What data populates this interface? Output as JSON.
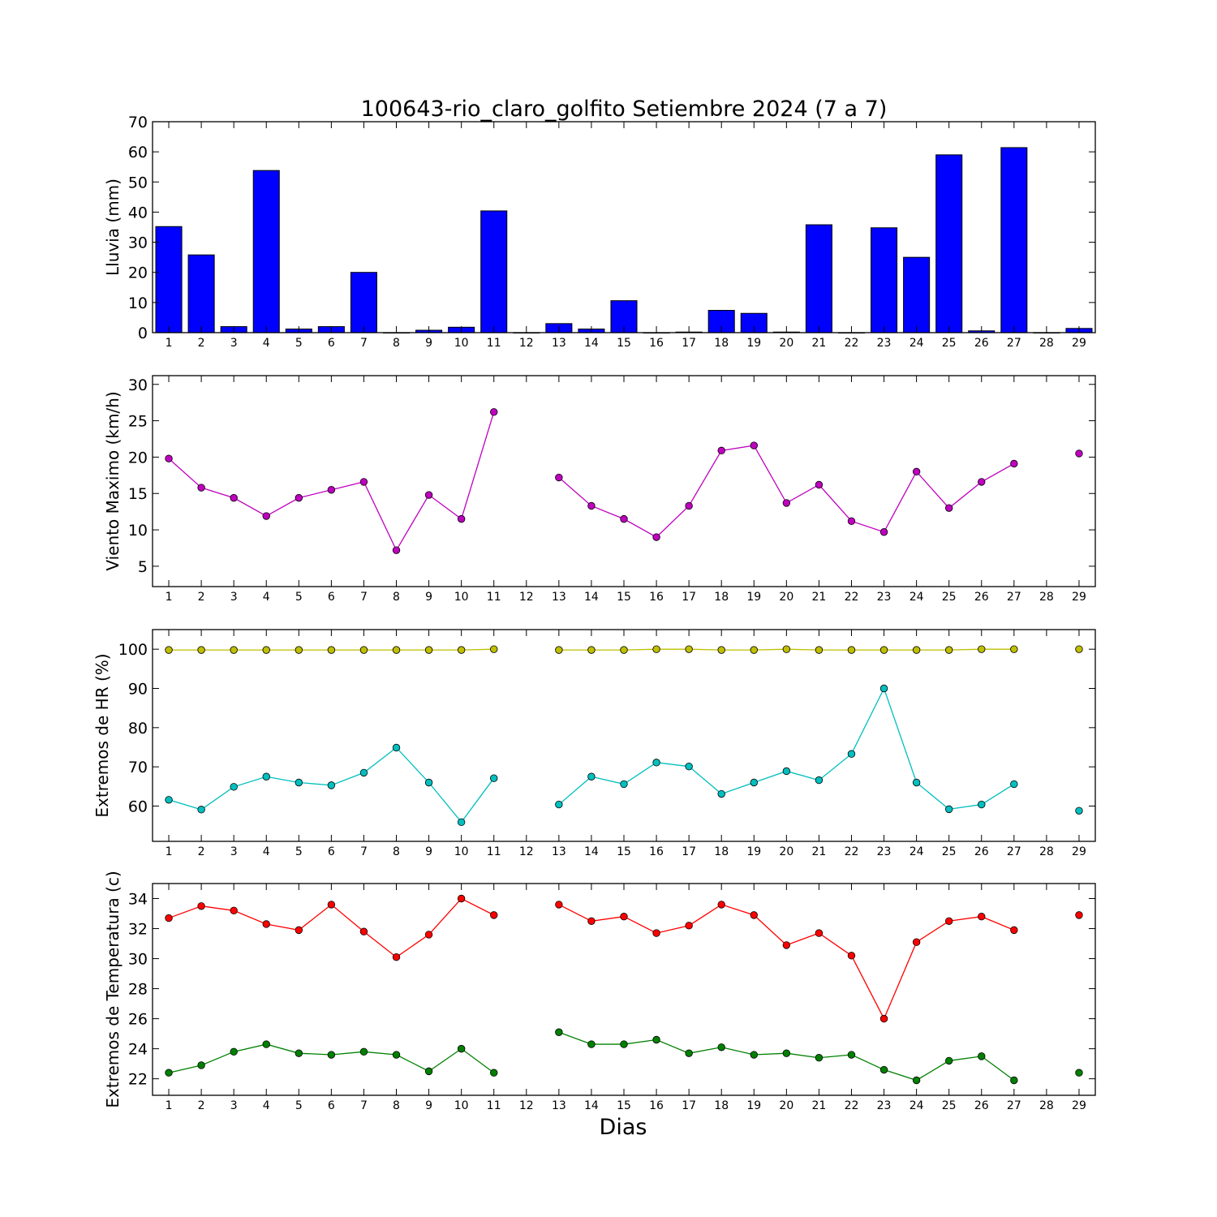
{
  "chart_data": [
    {
      "type": "bar",
      "title": "100643-rio_claro_golfito Setiembre 2024  (7 a 7)",
      "ylabel": "Lluvia (mm)",
      "xlabel": "",
      "ylim": [
        0,
        70
      ],
      "yticks": [
        0,
        10,
        20,
        30,
        40,
        50,
        60,
        70
      ],
      "x": [
        1,
        2,
        3,
        4,
        5,
        6,
        7,
        8,
        9,
        10,
        11,
        12,
        13,
        14,
        15,
        16,
        17,
        18,
        19,
        20,
        21,
        22,
        23,
        24,
        25,
        26,
        27,
        28,
        29
      ],
      "series": [
        {
          "color": "#0000ff",
          "values": [
            35.2,
            25.8,
            2.0,
            53.8,
            1.2,
            2.0,
            20.0,
            0,
            0.8,
            1.8,
            40.4,
            0,
            3.0,
            1.2,
            10.6,
            0,
            0.2,
            7.4,
            6.4,
            0.2,
            35.8,
            0,
            34.8,
            25.0,
            59.0,
            0.6,
            61.4,
            0,
            1.4
          ]
        }
      ],
      "grid": false
    },
    {
      "type": "line",
      "title": "",
      "ylabel": "Viento Maximo (km/h)",
      "xlabel": "",
      "ylim": [
        2.2,
        31.2
      ],
      "yticks": [
        5,
        10,
        15,
        20,
        25,
        30
      ],
      "x": [
        1,
        2,
        3,
        4,
        5,
        6,
        7,
        8,
        9,
        10,
        11,
        12,
        13,
        14,
        15,
        16,
        17,
        18,
        19,
        20,
        21,
        22,
        23,
        24,
        25,
        26,
        27,
        28,
        29
      ],
      "series": [
        {
          "color": "#bf00bf",
          "values": [
            19.8,
            15.8,
            14.4,
            11.9,
            14.4,
            15.5,
            16.6,
            7.2,
            14.8,
            11.5,
            26.2,
            null,
            17.2,
            13.3,
            11.5,
            9.0,
            13.3,
            20.9,
            21.6,
            13.7,
            16.2,
            11.2,
            9.7,
            18.0,
            13.0,
            16.6,
            19.1,
            null,
            20.5
          ]
        }
      ],
      "grid": false
    },
    {
      "type": "line",
      "title": "",
      "ylabel": "Extremos de HR (%)",
      "xlabel": "",
      "ylim": [
        51,
        105
      ],
      "yticks": [
        60,
        70,
        80,
        90,
        100
      ],
      "x": [
        1,
        2,
        3,
        4,
        5,
        6,
        7,
        8,
        9,
        10,
        11,
        12,
        13,
        14,
        15,
        16,
        17,
        18,
        19,
        20,
        21,
        22,
        23,
        24,
        25,
        26,
        27,
        28,
        29
      ],
      "series": [
        {
          "color": "#bfbf00",
          "values": [
            99.8,
            99.8,
            99.8,
            99.8,
            99.8,
            99.8,
            99.8,
            99.8,
            99.8,
            99.8,
            100,
            null,
            99.8,
            99.8,
            99.8,
            100,
            100,
            99.8,
            99.8,
            100,
            99.8,
            99.8,
            99.8,
            99.8,
            99.8,
            100,
            100,
            null,
            100
          ]
        },
        {
          "color": "#00bfbf",
          "values": [
            61.6,
            59.1,
            64.9,
            67.5,
            66.0,
            65.3,
            68.5,
            74.9,
            66.0,
            55.9,
            67.1,
            null,
            60.4,
            67.5,
            65.6,
            71.1,
            70.1,
            63.1,
            66.0,
            68.9,
            66.6,
            73.3,
            90.0,
            66.0,
            59.2,
            60.4,
            65.6,
            null,
            58.8
          ]
        }
      ],
      "grid": false
    },
    {
      "type": "line",
      "title": "",
      "ylabel": "Extremos de Temperatura (c)",
      "xlabel": "Dias",
      "ylim": [
        20.9,
        35.0
      ],
      "yticks": [
        22,
        24,
        26,
        28,
        30,
        32,
        34
      ],
      "x": [
        1,
        2,
        3,
        4,
        5,
        6,
        7,
        8,
        9,
        10,
        11,
        12,
        13,
        14,
        15,
        16,
        17,
        18,
        19,
        20,
        21,
        22,
        23,
        24,
        25,
        26,
        27,
        28,
        29
      ],
      "series": [
        {
          "color": "#ff0000",
          "values": [
            32.7,
            33.5,
            33.2,
            32.3,
            31.9,
            33.6,
            31.8,
            30.1,
            31.6,
            34.0,
            32.9,
            null,
            33.6,
            32.5,
            32.8,
            31.7,
            32.2,
            33.6,
            32.9,
            30.9,
            31.7,
            30.2,
            26.0,
            31.1,
            32.5,
            32.8,
            31.9,
            null,
            32.9
          ]
        },
        {
          "color": "#008000",
          "values": [
            22.4,
            22.9,
            23.8,
            24.3,
            23.7,
            23.6,
            23.8,
            23.6,
            22.5,
            24.0,
            22.4,
            null,
            25.1,
            24.3,
            24.3,
            24.6,
            23.7,
            24.1,
            23.6,
            23.7,
            23.4,
            23.6,
            22.6,
            21.9,
            23.2,
            23.5,
            21.9,
            null,
            22.4
          ]
        }
      ],
      "grid": false
    }
  ]
}
